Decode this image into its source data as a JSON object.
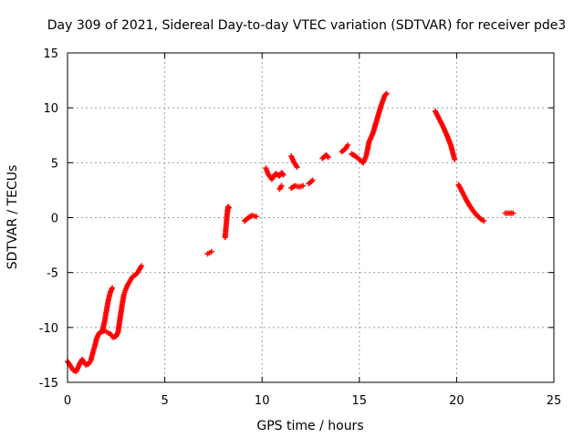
{
  "chart_data": {
    "type": "scatter",
    "title": "Day 309 of 2021, Sidereal Day-to-day VTEC variation (SDTVAR) for receiver pde3",
    "xlabel": "GPS time / hours",
    "ylabel": "SDTVAR / TECUs",
    "xlim": [
      0,
      25
    ],
    "ylim": [
      -15,
      15
    ],
    "xticks": [
      0,
      5,
      10,
      15,
      20,
      25
    ],
    "yticks": [
      -15,
      -10,
      -5,
      0,
      5,
      10,
      15
    ],
    "grid": true,
    "marker": "plus",
    "color": "#ff0000",
    "segments": [
      [
        [
          0.0,
          -13.1
        ],
        [
          0.15,
          -13.5
        ],
        [
          0.3,
          -13.9
        ],
        [
          0.45,
          -14.0
        ],
        [
          0.55,
          -13.6
        ],
        [
          0.65,
          -13.2
        ],
        [
          0.75,
          -12.9
        ],
        [
          0.85,
          -13.2
        ],
        [
          0.95,
          -13.4
        ],
        [
          1.1,
          -13.3
        ],
        [
          1.2,
          -13.0
        ],
        [
          1.3,
          -12.3
        ],
        [
          1.4,
          -11.7
        ],
        [
          1.5,
          -11.0
        ],
        [
          1.6,
          -10.6
        ],
        [
          1.7,
          -10.4
        ],
        [
          1.8,
          -10.3
        ],
        [
          1.9,
          -9.5
        ],
        [
          2.0,
          -8.5
        ],
        [
          2.1,
          -7.5
        ],
        [
          2.2,
          -6.8
        ],
        [
          2.3,
          -6.4
        ]
      ],
      [
        [
          1.75,
          -10.4
        ],
        [
          1.9,
          -10.3
        ],
        [
          2.0,
          -10.4
        ],
        [
          2.1,
          -10.5
        ],
        [
          2.2,
          -10.6
        ],
        [
          2.35,
          -10.9
        ],
        [
          2.5,
          -10.8
        ],
        [
          2.6,
          -10.4
        ],
        [
          2.7,
          -9.2
        ],
        [
          2.8,
          -8.0
        ],
        [
          2.9,
          -7.0
        ],
        [
          3.0,
          -6.5
        ],
        [
          3.1,
          -6.1
        ],
        [
          3.2,
          -5.8
        ],
        [
          3.3,
          -5.5
        ],
        [
          3.4,
          -5.3
        ],
        [
          3.5,
          -5.2
        ],
        [
          3.6,
          -5.0
        ],
        [
          3.7,
          -4.7
        ],
        [
          3.8,
          -4.4
        ]
      ],
      [
        [
          7.2,
          -3.3
        ],
        [
          7.3,
          -3.2
        ],
        [
          7.4,
          -3.1
        ]
      ],
      [
        [
          8.1,
          -1.8
        ],
        [
          8.15,
          -0.8
        ],
        [
          8.2,
          0.2
        ],
        [
          8.25,
          1.0
        ],
        [
          8.3,
          0.9
        ]
      ],
      [
        [
          9.1,
          -0.3
        ],
        [
          9.3,
          0.0
        ],
        [
          9.5,
          0.2
        ],
        [
          9.7,
          0.1
        ]
      ],
      [
        [
          10.2,
          4.5
        ],
        [
          10.3,
          4.0
        ],
        [
          10.5,
          3.5
        ],
        [
          10.7,
          4.0
        ],
        [
          10.9,
          3.8
        ],
        [
          11.0,
          4.1
        ],
        [
          11.1,
          3.9
        ]
      ],
      [
        [
          10.9,
          2.6
        ],
        [
          11.0,
          2.9
        ]
      ],
      [
        [
          11.5,
          5.6
        ],
        [
          11.65,
          5.0
        ],
        [
          11.8,
          4.6
        ]
      ],
      [
        [
          11.5,
          2.7
        ],
        [
          11.7,
          2.9
        ],
        [
          11.9,
          2.8
        ],
        [
          12.1,
          2.9
        ]
      ],
      [
        [
          12.4,
          3.1
        ],
        [
          12.6,
          3.4
        ]
      ],
      [
        [
          13.1,
          5.4
        ],
        [
          13.3,
          5.7
        ],
        [
          13.4,
          5.5
        ]
      ],
      [
        [
          14.1,
          6.0
        ],
        [
          14.3,
          6.3
        ],
        [
          14.4,
          6.6
        ]
      ],
      [
        [
          14.6,
          5.8
        ],
        [
          14.8,
          5.6
        ],
        [
          15.0,
          5.3
        ],
        [
          15.2,
          5.0
        ],
        [
          15.35,
          5.6
        ],
        [
          15.5,
          6.9
        ],
        [
          15.7,
          7.7
        ],
        [
          15.9,
          8.9
        ],
        [
          16.1,
          10.1
        ],
        [
          16.3,
          11.1
        ],
        [
          16.4,
          11.3
        ]
      ],
      [
        [
          18.9,
          9.7
        ],
        [
          19.1,
          9.0
        ],
        [
          19.3,
          8.3
        ],
        [
          19.5,
          7.5
        ],
        [
          19.7,
          6.6
        ],
        [
          19.85,
          5.6
        ],
        [
          19.9,
          5.3
        ]
      ],
      [
        [
          20.1,
          3.0
        ],
        [
          20.3,
          2.3
        ],
        [
          20.5,
          1.6
        ],
        [
          20.7,
          1.0
        ],
        [
          20.9,
          0.5
        ],
        [
          21.1,
          0.1
        ],
        [
          21.3,
          -0.2
        ],
        [
          21.4,
          -0.3
        ]
      ],
      [
        [
          22.5,
          0.4
        ],
        [
          22.7,
          0.4
        ],
        [
          22.9,
          0.4
        ]
      ]
    ]
  }
}
